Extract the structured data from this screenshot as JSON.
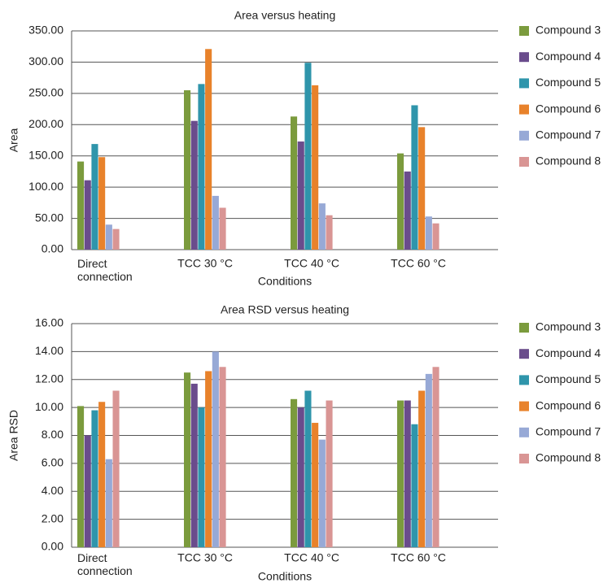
{
  "chart_data": [
    {
      "type": "bar",
      "title": "Area versus heating",
      "x_label": "Conditions",
      "y_label": "Area",
      "categories": [
        "Direct connection",
        "TCC 30 °C",
        "TCC 40 °C",
        "TCC 60 °C"
      ],
      "series": [
        {
          "name": "Compound 3",
          "color": "#7b9b3d",
          "values": [
            141,
            255,
            213,
            154
          ]
        },
        {
          "name": "Compound 4",
          "color": "#6a4c8c",
          "values": [
            111,
            206,
            173,
            125
          ]
        },
        {
          "name": "Compound 5",
          "color": "#2f95ab",
          "values": [
            169,
            265,
            299,
            231
          ]
        },
        {
          "name": "Compound 6",
          "color": "#e8822b",
          "values": [
            148,
            321,
            263,
            196
          ]
        },
        {
          "name": "Compound 7",
          "color": "#97a9d6",
          "values": [
            40,
            86,
            74,
            53
          ]
        },
        {
          "name": "Compound 8",
          "color": "#d99594",
          "values": [
            33,
            67,
            55,
            42
          ]
        }
      ],
      "ylim": [
        0,
        350
      ],
      "yticks": [
        {
          "value": 0,
          "label": "0.00"
        },
        {
          "value": 50,
          "label": "50.00"
        },
        {
          "value": 100,
          "label": "100.00"
        },
        {
          "value": 150,
          "label": "150.00"
        },
        {
          "value": 200,
          "label": "200.00"
        },
        {
          "value": 250,
          "label": "250.00"
        },
        {
          "value": 300,
          "label": "300.00"
        },
        {
          "value": 350,
          "label": "350.00"
        }
      ],
      "grid": true,
      "legend": "right"
    },
    {
      "type": "bar",
      "title": "Area RSD versus heating",
      "x_label": "Conditions",
      "y_label": "Area RSD",
      "categories": [
        "Direct connection",
        "TCC 30 °C",
        "TCC 40 °C",
        "TCC 60 °C"
      ],
      "series": [
        {
          "name": "Compound 3",
          "color": "#7b9b3d",
          "values": [
            10.1,
            12.5,
            10.6,
            10.5
          ]
        },
        {
          "name": "Compound 4",
          "color": "#6a4c8c",
          "values": [
            8.0,
            11.7,
            10.0,
            10.5
          ]
        },
        {
          "name": "Compound 5",
          "color": "#2f95ab",
          "values": [
            9.8,
            10.0,
            11.2,
            8.8
          ]
        },
        {
          "name": "Compound 6",
          "color": "#e8822b",
          "values": [
            10.4,
            12.6,
            8.9,
            11.2
          ]
        },
        {
          "name": "Compound 7",
          "color": "#97a9d6",
          "values": [
            6.3,
            14.0,
            7.7,
            12.4
          ]
        },
        {
          "name": "Compound 8",
          "color": "#d99594",
          "values": [
            11.2,
            12.9,
            10.5,
            12.9
          ]
        }
      ],
      "ylim": [
        0,
        16
      ],
      "yticks": [
        {
          "value": 0,
          "label": "0.00"
        },
        {
          "value": 2,
          "label": "2.00"
        },
        {
          "value": 4,
          "label": "4.00"
        },
        {
          "value": 6,
          "label": "6.00"
        },
        {
          "value": 8,
          "label": "8.00"
        },
        {
          "value": 10,
          "label": "10.00"
        },
        {
          "value": 12,
          "label": "12.00"
        },
        {
          "value": 14,
          "label": "14.00"
        },
        {
          "value": 16,
          "label": "16.00"
        }
      ],
      "grid": true,
      "legend": "right"
    }
  ]
}
